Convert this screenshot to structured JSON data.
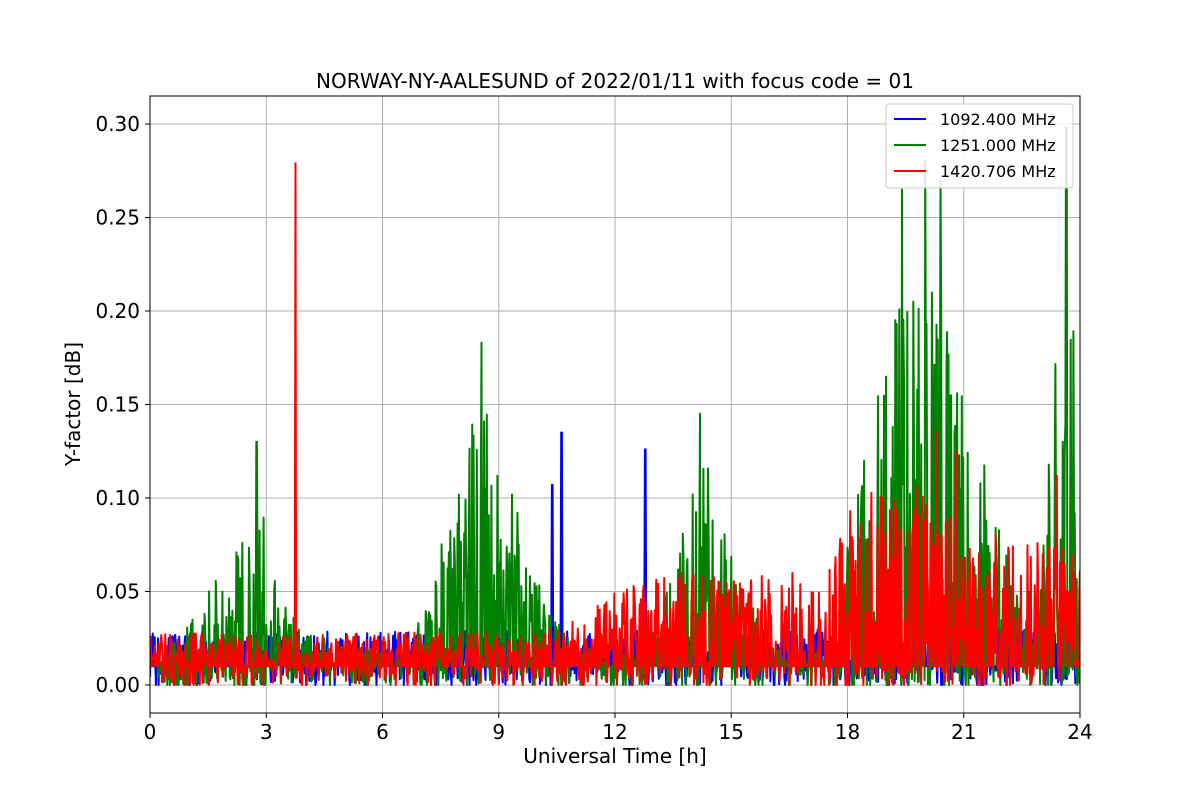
{
  "chart_data": {
    "type": "line",
    "title": "NORWAY-NY-AALESUND of 2022/01/11 with focus code = 01",
    "xlabel": "Universal Time [h]",
    "ylabel": "Y-factor [dB]",
    "xlim": [
      0,
      24
    ],
    "ylim": [
      -0.015,
      0.315
    ],
    "xticks": [
      0,
      3,
      6,
      9,
      12,
      15,
      18,
      21,
      24
    ],
    "yticks": [
      0.0,
      0.05,
      0.1,
      0.15,
      0.2,
      0.25,
      0.3
    ],
    "ytick_labels": [
      "0.00",
      "0.05",
      "0.10",
      "0.15",
      "0.20",
      "0.25",
      "0.30"
    ],
    "grid": true,
    "legend_position": "top-right",
    "series": [
      {
        "name": "1092.400 MHz",
        "color": "#0000ff",
        "baseline": 0.01,
        "noise": [
          [
            0,
            0.018
          ],
          [
            18,
            0.02
          ],
          [
            24,
            0.02
          ]
        ],
        "spikes": [
          [
            5.85,
            0.0
          ],
          [
            10.38,
            0.107
          ],
          [
            10.62,
            0.135
          ],
          [
            12.78,
            0.126
          ]
        ]
      },
      {
        "name": "1251.000 MHz",
        "color": "#008000",
        "baseline": 0.01,
        "noise": [
          [
            0,
            0.005
          ],
          [
            0.8,
            0.015
          ],
          [
            1.5,
            0.04
          ],
          [
            2.3,
            0.07
          ],
          [
            2.75,
            0.1
          ],
          [
            3.3,
            0.04
          ],
          [
            4.0,
            0.018
          ],
          [
            5.0,
            0.012
          ],
          [
            6.5,
            0.005
          ],
          [
            7.2,
            0.04
          ],
          [
            7.8,
            0.09
          ],
          [
            8.5,
            0.15
          ],
          [
            9.1,
            0.11
          ],
          [
            9.8,
            0.06
          ],
          [
            10.3,
            0.03
          ],
          [
            11.0,
            0.01
          ],
          [
            12.5,
            0.01
          ],
          [
            13.3,
            0.04
          ],
          [
            14.3,
            0.12
          ],
          [
            15.0,
            0.06
          ],
          [
            16.0,
            0.01
          ],
          [
            17.5,
            0.01
          ],
          [
            18.3,
            0.1
          ],
          [
            19.5,
            0.21
          ],
          [
            20.5,
            0.2
          ],
          [
            21.4,
            0.12
          ],
          [
            22.5,
            0.04
          ],
          [
            23.0,
            0.05
          ],
          [
            23.6,
            0.24
          ],
          [
            24.0,
            0.18
          ]
        ],
        "spikes": [
          [
            2.75,
            0.13
          ],
          [
            8.55,
            0.183
          ],
          [
            14.2,
            0.145
          ],
          [
            19.4,
            0.265
          ],
          [
            20.0,
            0.28
          ],
          [
            20.4,
            0.27
          ],
          [
            23.65,
            0.298
          ]
        ]
      },
      {
        "name": "1420.706 MHz",
        "color": "#ff0000",
        "baseline": 0.01,
        "noise": [
          [
            0,
            0.018
          ],
          [
            10.0,
            0.018
          ],
          [
            11.0,
            0.03
          ],
          [
            12.0,
            0.04
          ],
          [
            13.5,
            0.05
          ],
          [
            15.0,
            0.05
          ],
          [
            17.5,
            0.05
          ],
          [
            18.0,
            0.09
          ],
          [
            19.5,
            0.1
          ],
          [
            21.0,
            0.08
          ],
          [
            24.0,
            0.06
          ]
        ],
        "spikes": [
          [
            3.75,
            0.279
          ],
          [
            20.3,
            0.135
          ],
          [
            20.8,
            0.125
          ],
          [
            23.4,
            0.112
          ]
        ]
      }
    ]
  }
}
